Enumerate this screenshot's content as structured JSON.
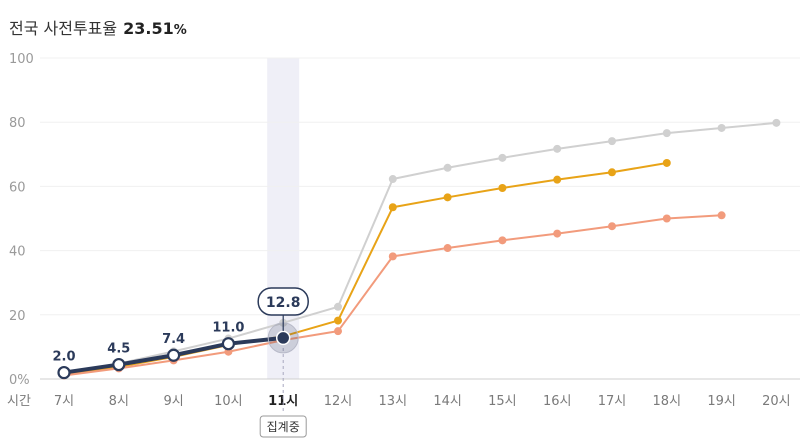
{
  "header": {
    "title": "전국 사전투표율",
    "rate_value": "23.51",
    "rate_unit": "%"
  },
  "x_axis_caption": "시간",
  "current_badge": "12.8",
  "status_label": "집계중",
  "chart_data": {
    "type": "line",
    "categories": [
      "7시",
      "8시",
      "9시",
      "10시",
      "11시",
      "12시",
      "13시",
      "14시",
      "15시",
      "16시",
      "17시",
      "18시",
      "19시",
      "20시"
    ],
    "y_ticks": [
      "0%",
      "20",
      "40",
      "60",
      "80",
      "100"
    ],
    "ylim": [
      0,
      100
    ],
    "current_index": 4,
    "series": [
      {
        "color": "#d0d0d0",
        "values": [
          1.6,
          4.8,
          8.6,
          12.6,
          17.5,
          22.5,
          62.3,
          65.8,
          68.9,
          71.7,
          74.1,
          76.6,
          78.2,
          79.8
        ]
      },
      {
        "color": "#e8a317",
        "values": [
          1.4,
          3.8,
          6.9,
          10.6,
          13.3,
          18.2,
          53.5,
          56.6,
          59.5,
          62.1,
          64.4,
          67.3,
          null,
          null
        ]
      },
      {
        "color": "#f29b7c",
        "values": [
          1.1,
          3.3,
          5.8,
          8.5,
          12.1,
          14.9,
          38.2,
          40.8,
          43.2,
          45.3,
          47.6,
          50.0,
          51.0,
          null
        ]
      },
      {
        "color": "#2b3a5a",
        "values": [
          2.0,
          4.5,
          7.4,
          11.0,
          12.8,
          null,
          null,
          null,
          null,
          null,
          null,
          null,
          null,
          null
        ],
        "labels": [
          "2.0",
          "4.5",
          "7.4",
          "11.0",
          "12.8"
        ]
      }
    ]
  }
}
